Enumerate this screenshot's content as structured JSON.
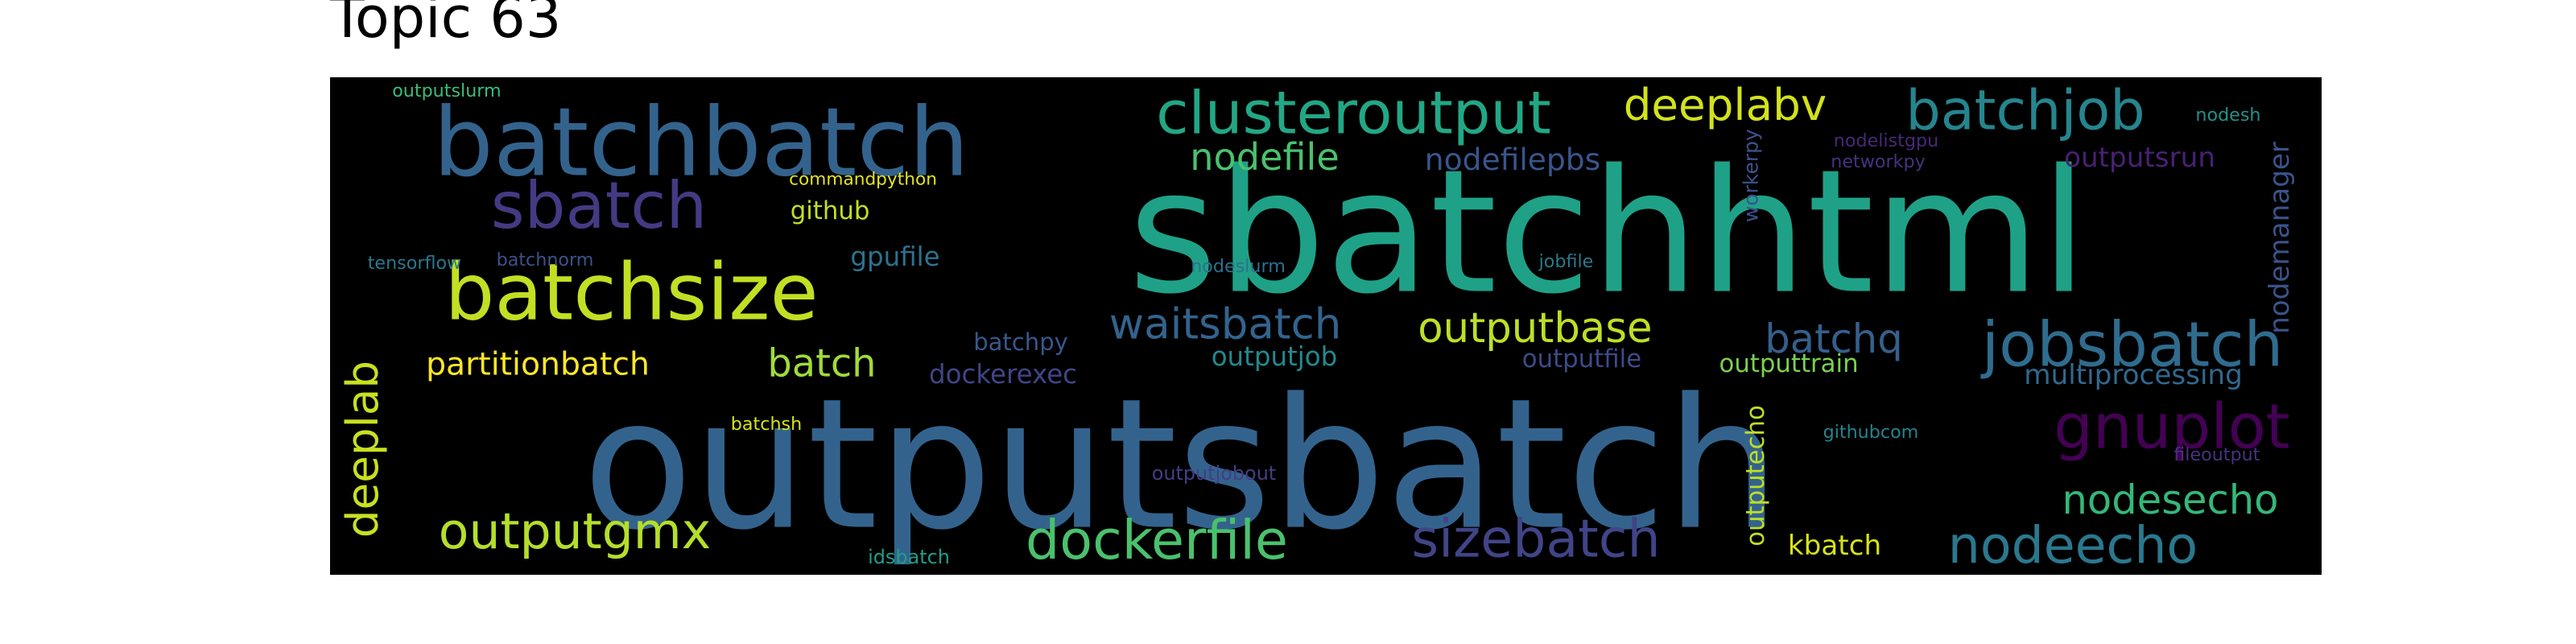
{
  "figure": {
    "title": "Topic 63"
  },
  "wordcloud": {
    "background": "#000000",
    "words": [
      {
        "text": "outputsbatch",
        "color": "#33638d"
      },
      {
        "text": "sbatchhtml",
        "color": "#1fa187"
      },
      {
        "text": "batchbatch",
        "color": "#33638d"
      },
      {
        "text": "batchsize",
        "color": "#c2df23"
      },
      {
        "text": "sbatch",
        "color": "#443a83"
      },
      {
        "text": "clusteroutput",
        "color": "#22a785"
      },
      {
        "text": "deeplabv",
        "color": "#d2e21b"
      },
      {
        "text": "batchjob",
        "color": "#25858e"
      },
      {
        "text": "jobsbatch",
        "color": "#2f6c8e"
      },
      {
        "text": "gnuplot",
        "color": "#440154"
      },
      {
        "text": "dockerfile",
        "color": "#4ac16d"
      },
      {
        "text": "sizebatch",
        "color": "#414487"
      },
      {
        "text": "nodeecho",
        "color": "#2a788e"
      },
      {
        "text": "nodesecho",
        "color": "#35b779"
      },
      {
        "text": "outputgmx",
        "color": "#b5de2b"
      },
      {
        "text": "waitsbatch",
        "color": "#33638d"
      },
      {
        "text": "outputbase",
        "color": "#bddf26"
      },
      {
        "text": "batchq",
        "color": "#355f8d"
      },
      {
        "text": "nodefile",
        "color": "#4ac16d"
      },
      {
        "text": "batch",
        "color": "#a0da39"
      },
      {
        "text": "partitionbatch",
        "color": "#fde725"
      },
      {
        "text": "deeplab",
        "color": "#c8e020"
      },
      {
        "text": "multiprocessing",
        "color": "#31688e"
      },
      {
        "text": "nodefilepbs",
        "color": "#39558c"
      },
      {
        "text": "nodemanager",
        "color": "#3b528b"
      },
      {
        "text": "outputsrun",
        "color": "#482173"
      },
      {
        "text": "outputecho",
        "color": "#bddf26"
      },
      {
        "text": "kbatch",
        "color": "#d8e219"
      },
      {
        "text": "github",
        "color": "#c0df25"
      },
      {
        "text": "gpufile",
        "color": "#2c728e"
      },
      {
        "text": "outputjob",
        "color": "#23898e"
      },
      {
        "text": "outputfile",
        "color": "#3e4989"
      },
      {
        "text": "outputtrain",
        "color": "#7ad151"
      },
      {
        "text": "dockerexec",
        "color": "#414487"
      },
      {
        "text": "batchpy",
        "color": "#39568c"
      },
      {
        "text": "commandpython",
        "color": "#e5e419"
      },
      {
        "text": "outputslurm",
        "color": "#3dbc74"
      },
      {
        "text": "tensorflow",
        "color": "#2a788e"
      },
      {
        "text": "batchnorm",
        "color": "#3b528b"
      },
      {
        "text": "nodeslurm",
        "color": "#2d708e"
      },
      {
        "text": "jobfile",
        "color": "#2a788e"
      },
      {
        "text": "workerpy",
        "color": "#3b528b"
      },
      {
        "text": "nodelistgpu",
        "color": "#482878"
      },
      {
        "text": "networkpy",
        "color": "#46327e"
      },
      {
        "text": "nodesh",
        "color": "#21918c"
      },
      {
        "text": "batchsh",
        "color": "#d5e21a"
      },
      {
        "text": "outputjobout",
        "color": "#433e85"
      },
      {
        "text": "githubcom",
        "color": "#26828e"
      },
      {
        "text": "fileoutput",
        "color": "#46337e"
      },
      {
        "text": "idsbatch",
        "color": "#1f9e89"
      }
    ]
  }
}
